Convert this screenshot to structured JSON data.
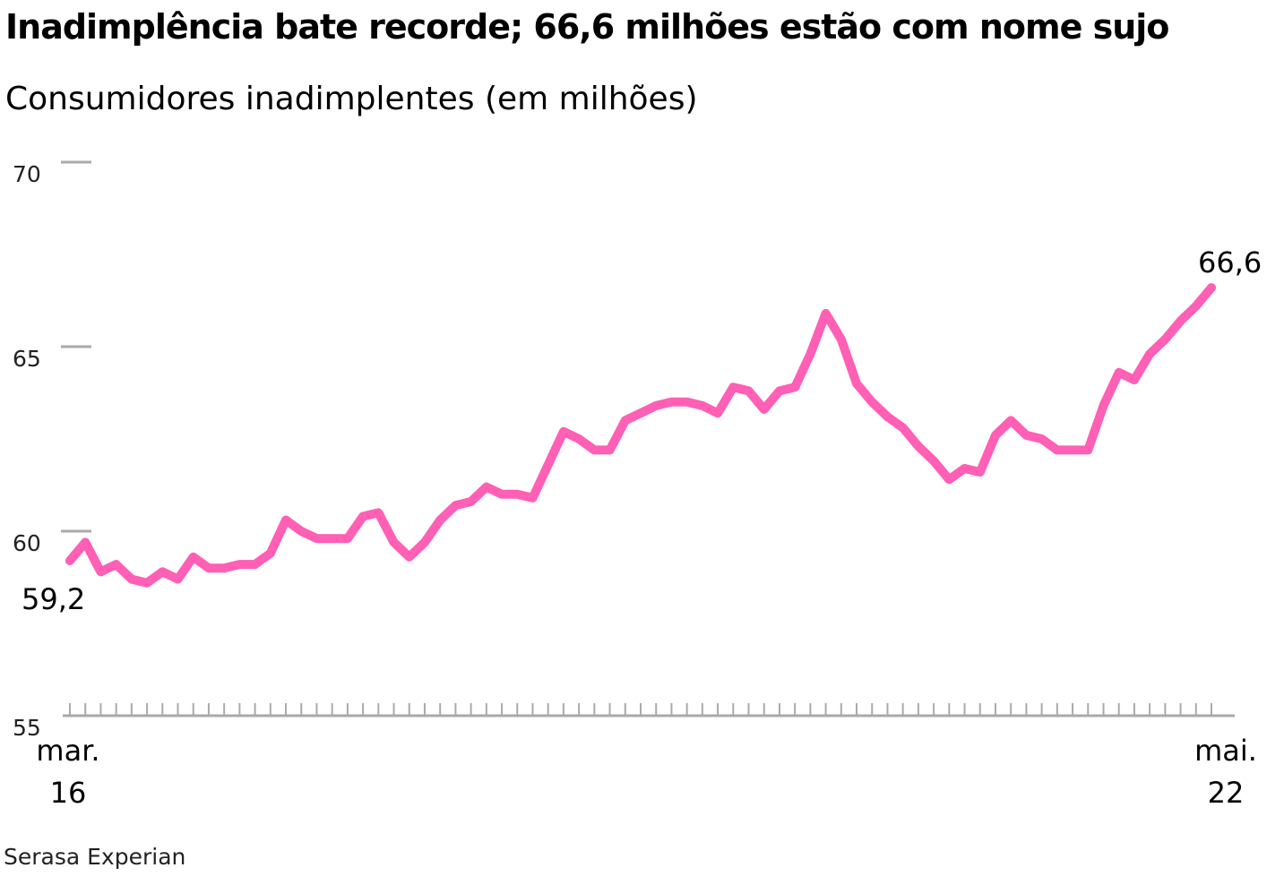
{
  "title": "Inadimplência bate recorde; 66,6 milhões estão com nome sujo",
  "subtitle": "Consumidores inadimplentes (em milhões)",
  "source": "Serasa Experian",
  "colors": {
    "line": "#ff5fb5",
    "axis": "#aaaaaa",
    "text": "#000000"
  },
  "chart_data": {
    "type": "line",
    "title": "Inadimplência bate recorde; 66,6 milhões estão com nome sujo",
    "subtitle": "Consumidores inadimplentes (em milhões)",
    "xlabel": "",
    "ylabel": "",
    "ylim": [
      55,
      70
    ],
    "yticks": [
      {
        "value": 70,
        "label": "70"
      },
      {
        "value": 65,
        "label": "65"
      },
      {
        "value": 60,
        "label": "60"
      },
      {
        "value": 55,
        "label": "55"
      }
    ],
    "x_start": {
      "month": "mar.",
      "year": "16"
    },
    "x_end": {
      "month": "mai.",
      "year": "22"
    },
    "grid": false,
    "legend": "none",
    "series": [
      {
        "values": [
          59.2,
          59.7,
          58.9,
          59.1,
          58.7,
          58.6,
          58.9,
          58.7,
          59.3,
          59.0,
          59.0,
          59.1,
          59.1,
          59.4,
          60.3,
          60.0,
          59.8,
          59.8,
          59.8,
          60.4,
          60.5,
          59.7,
          59.3,
          59.7,
          60.3,
          60.7,
          60.8,
          61.2,
          61.0,
          61.0,
          60.9,
          61.8,
          62.7,
          62.5,
          62.2,
          62.2,
          63.0,
          63.2,
          63.4,
          63.5,
          63.5,
          63.4,
          63.2,
          63.9,
          63.8,
          63.3,
          63.8,
          63.9,
          64.8,
          65.9,
          65.2,
          64.0,
          63.5,
          63.1,
          62.8,
          62.3,
          61.9,
          61.4,
          61.7,
          61.6,
          62.6,
          63.0,
          62.6,
          62.5,
          62.2,
          62.2,
          62.2,
          63.4,
          64.3,
          64.1,
          64.8,
          65.2,
          65.7,
          66.1,
          66.6
        ]
      }
    ],
    "annotations": [
      {
        "label": "59,2",
        "point": "first"
      },
      {
        "label": "66,6",
        "point": "last"
      }
    ]
  }
}
